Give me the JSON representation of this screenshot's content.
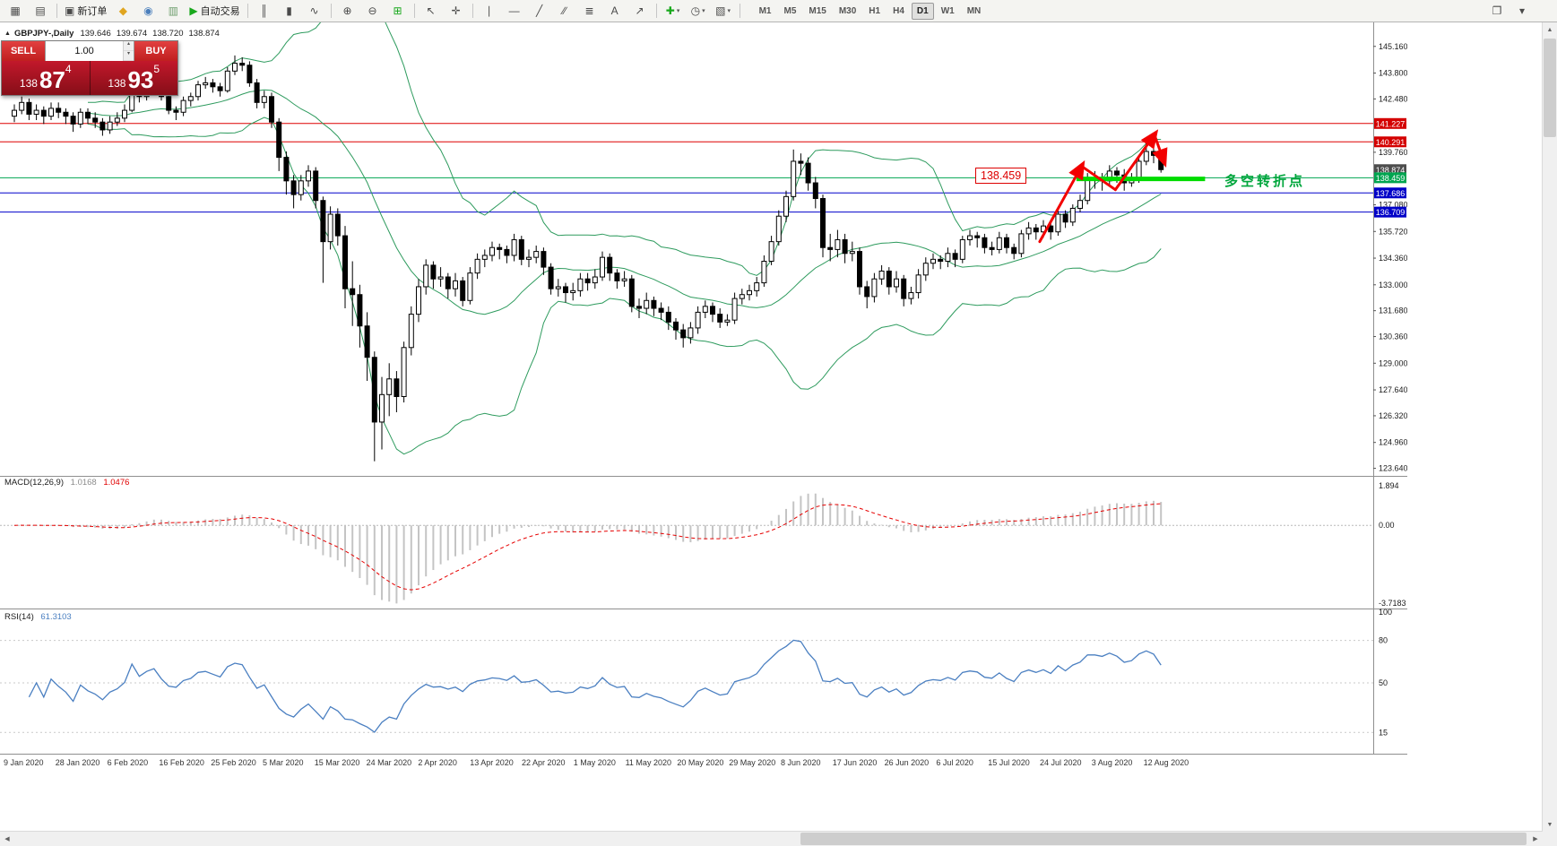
{
  "toolbar": {
    "items": [
      {
        "name": "new-chart-icon",
        "glyph": "▦"
      },
      {
        "name": "profiles-icon",
        "glyph": "▤"
      },
      {
        "name": "sep1",
        "sep": true
      },
      {
        "name": "new-order-button",
        "glyph": "▣",
        "label": "新订单"
      },
      {
        "name": "market-watch-icon",
        "glyph": "◆",
        "color": "#e0a51f"
      },
      {
        "name": "navigator-icon",
        "glyph": "◉",
        "color": "#4a7ebb"
      },
      {
        "name": "terminal-icon",
        "glyph": "▥",
        "color": "#6f9f6f"
      },
      {
        "name": "autotrading-button",
        "glyph": "▶",
        "label": "自动交易",
        "color": "#18a81c"
      },
      {
        "name": "sep2",
        "sep": true
      },
      {
        "name": "bars-chart-icon",
        "glyph": "║"
      },
      {
        "name": "candles-chart-icon",
        "glyph": "▮"
      },
      {
        "name": "line-chart-icon",
        "glyph": "∿"
      },
      {
        "name": "sep3",
        "sep": true
      },
      {
        "name": "zoom-in-icon",
        "glyph": "⊕"
      },
      {
        "name": "zoom-out-icon",
        "glyph": "⊖"
      },
      {
        "name": "tile-windows-icon",
        "glyph": "⊞",
        "color": "#18a81c"
      },
      {
        "name": "sep4",
        "sep": true
      },
      {
        "name": "cursor-icon",
        "glyph": "↖"
      },
      {
        "name": "crosshair-icon",
        "glyph": "✛"
      },
      {
        "name": "sep5",
        "sep": true
      },
      {
        "name": "vertical-line-icon",
        "glyph": "∣"
      },
      {
        "name": "horizontal-line-icon",
        "glyph": "―"
      },
      {
        "name": "trendline-icon",
        "glyph": "╱"
      },
      {
        "name": "channel-icon",
        "glyph": "∕∕"
      },
      {
        "name": "fibonacci-icon",
        "glyph": "≣"
      },
      {
        "name": "text-icon",
        "glyph": "A"
      },
      {
        "name": "arrows-icon",
        "glyph": "↗"
      },
      {
        "name": "sep6",
        "sep": true
      },
      {
        "name": "indicators-icon",
        "glyph": "✚",
        "color": "#18a81c",
        "dropdown": true
      },
      {
        "name": "periods-icon",
        "glyph": "◷",
        "dropdown": true
      },
      {
        "name": "templates-icon",
        "glyph": "▧",
        "dropdown": true
      },
      {
        "name": "sep7",
        "sep": true
      }
    ],
    "timeframes": [
      "M1",
      "M5",
      "M15",
      "M30",
      "H1",
      "H4",
      "D1",
      "W1",
      "MN"
    ],
    "active_timeframe": "D1",
    "right_items": [
      {
        "name": "docking-icon",
        "glyph": "❐"
      },
      {
        "name": "toolbar-more-icon",
        "glyph": "▾"
      }
    ]
  },
  "chart_header": {
    "symbol": "GBPJPY-,Daily",
    "open": "139.646",
    "high": "139.674",
    "low": "138.720",
    "close": "138.874"
  },
  "trade_panel": {
    "sell_label": "SELL",
    "buy_label": "BUY",
    "lot_value": "1.00",
    "sell_small": "138",
    "sell_big": "87",
    "sell_sup": "4",
    "buy_small": "138",
    "buy_big": "93",
    "buy_sup": "5"
  },
  "annotations": {
    "price_box": "138.459",
    "turning_point_text": "多空转折点"
  },
  "axis": {
    "price_labels": [
      "145.160",
      "143.800",
      "142.480",
      "139.760",
      "137.080",
      "135.720",
      "134.360",
      "133.000",
      "131.680",
      "130.360",
      "129.000",
      "127.640",
      "126.320",
      "124.960",
      "123.640"
    ],
    "date_labels": [
      "9 Jan 2020",
      "28 Jan 2020",
      "6 Feb 2020",
      "16 Feb 2020",
      "25 Feb 2020",
      "5 Mar 2020",
      "15 Mar 2020",
      "24 Mar 2020",
      "2 Apr 2020",
      "13 Apr 2020",
      "22 Apr 2020",
      "1 May 2020",
      "11 May 2020",
      "20 May 2020",
      "29 May 2020",
      "8 Jun 2020",
      "17 Jun 2020",
      "26 Jun 2020",
      "6 Jul 2020",
      "15 Jul 2020",
      "24 Jul 2020",
      "3 Aug 2020",
      "12 Aug 2020"
    ]
  },
  "price_tags": [
    {
      "text": "141.227",
      "value": 141.227,
      "color": "#d40000"
    },
    {
      "text": "140.291",
      "value": 140.291,
      "color": "#d40000"
    },
    {
      "text": "138.874",
      "value": 138.874,
      "color": "#4d4d4d"
    },
    {
      "text": "138.459",
      "value": 138.459,
      "color": "#00a550"
    },
    {
      "text": "137.686",
      "value": 137.686,
      "color": "#0000c8"
    },
    {
      "text": "136.709",
      "value": 136.709,
      "color": "#0000c8"
    }
  ],
  "macd_panel": {
    "name": "MACD(12,26,9)",
    "main_value": "1.0168",
    "signal_value": "1.0476",
    "axis_labels": [
      {
        "text": "1.894",
        "value": 1.894
      },
      {
        "text": "0.00",
        "value": 0
      },
      {
        "text": "-3.7183",
        "value": -3.7183
      }
    ]
  },
  "rsi_panel": {
    "name": "RSI(14)",
    "value": "61.3103",
    "axis_labels": [
      {
        "text": "100",
        "value": 100
      },
      {
        "text": "80",
        "value": 80
      },
      {
        "text": "50",
        "value": 50
      },
      {
        "text": "15",
        "value": 15
      }
    ]
  },
  "chart_data": {
    "type": "candlestick",
    "symbol": "GBPJPY-",
    "timeframe": "Daily",
    "y_range": [
      123.3,
      146.2
    ],
    "horizontal_lines": [
      {
        "value": 141.227,
        "color": "#dd0000"
      },
      {
        "value": 140.291,
        "color": "#dd0000"
      },
      {
        "value": 138.459,
        "color": "#00a550"
      },
      {
        "value": 137.686,
        "color": "#0000cc"
      },
      {
        "value": 136.709,
        "color": "#0000cc"
      }
    ],
    "turning_line": {
      "price": 138.4,
      "from_index": 144.5,
      "to_index": 162,
      "color": "#00dc00",
      "width": 5
    },
    "trend_arrows": {
      "color": "#f20000",
      "points": [
        [
          139.5,
          135.2
        ],
        [
          145.2,
          139.05
        ],
        [
          149.8,
          137.85
        ],
        [
          155.1,
          140.65
        ],
        [
          156.4,
          139.3
        ]
      ],
      "arrow_segments": [
        0,
        2,
        3
      ]
    },
    "indicators": {
      "bollinger": {
        "period": 20,
        "deviation": 2,
        "color": "#2e9b5e"
      },
      "macd": {
        "fast": 12,
        "slow": 26,
        "signal": 9,
        "histogram_color": "#c4c4c4",
        "signal_color": "#e60000",
        "range": [
          -3.9,
          2.2
        ]
      },
      "rsi": {
        "period": 14,
        "color": "#4a7fc1",
        "levels": [
          80,
          50,
          15
        ]
      }
    },
    "candles": [
      [
        141.6,
        142.2,
        141.3,
        141.9
      ],
      [
        141.9,
        142.6,
        141.7,
        142.3
      ],
      [
        142.3,
        142.5,
        141.4,
        141.7
      ],
      [
        141.7,
        142.2,
        141.4,
        141.9
      ],
      [
        141.9,
        142.1,
        141.2,
        141.6
      ],
      [
        141.6,
        142.3,
        141.4,
        142.0
      ],
      [
        142.0,
        142.3,
        141.5,
        141.8
      ],
      [
        141.8,
        142.0,
        141.2,
        141.6
      ],
      [
        141.6,
        141.8,
        140.8,
        141.2
      ],
      [
        141.2,
        142.0,
        141.0,
        141.8
      ],
      [
        141.8,
        142.0,
        141.2,
        141.5
      ],
      [
        141.5,
        141.8,
        141.0,
        141.3
      ],
      [
        141.3,
        141.5,
        140.6,
        140.9
      ],
      [
        140.9,
        141.6,
        140.7,
        141.3
      ],
      [
        141.3,
        141.8,
        141.1,
        141.5
      ],
      [
        141.5,
        142.2,
        141.3,
        141.9
      ],
      [
        141.9,
        143.7,
        141.8,
        143.5
      ],
      [
        143.5,
        143.8,
        142.3,
        142.6
      ],
      [
        142.6,
        143.3,
        142.4,
        143.1
      ],
      [
        143.1,
        143.6,
        142.9,
        143.4
      ],
      [
        143.4,
        143.6,
        142.4,
        142.6
      ],
      [
        142.6,
        142.8,
        141.7,
        141.9
      ],
      [
        141.9,
        142.1,
        141.4,
        141.8
      ],
      [
        141.8,
        142.6,
        141.6,
        142.4
      ],
      [
        142.4,
        142.8,
        142.1,
        142.6
      ],
      [
        142.6,
        143.4,
        142.4,
        143.2
      ],
      [
        143.2,
        143.6,
        143.0,
        143.3
      ],
      [
        143.3,
        143.5,
        142.8,
        143.1
      ],
      [
        143.1,
        143.3,
        142.6,
        142.9
      ],
      [
        142.9,
        144.1,
        142.8,
        143.9
      ],
      [
        143.9,
        144.7,
        143.7,
        144.3
      ],
      [
        144.3,
        144.6,
        143.9,
        144.2
      ],
      [
        144.2,
        144.4,
        143.1,
        143.3
      ],
      [
        143.3,
        143.5,
        142.0,
        142.3
      ],
      [
        142.3,
        142.9,
        142.0,
        142.6
      ],
      [
        142.6,
        142.8,
        141.0,
        141.3
      ],
      [
        141.3,
        141.5,
        138.8,
        139.5
      ],
      [
        139.5,
        139.8,
        137.6,
        138.3
      ],
      [
        138.3,
        138.6,
        136.9,
        137.6
      ],
      [
        137.6,
        138.6,
        137.3,
        138.3
      ],
      [
        138.3,
        139.1,
        138.0,
        138.8
      ],
      [
        138.8,
        139.0,
        136.9,
        137.3
      ],
      [
        137.3,
        137.5,
        133.1,
        135.2
      ],
      [
        135.2,
        137.0,
        134.8,
        136.6
      ],
      [
        136.6,
        136.9,
        135.0,
        135.5
      ],
      [
        135.5,
        136.0,
        131.8,
        132.8
      ],
      [
        132.8,
        134.2,
        130.9,
        132.5
      ],
      [
        132.5,
        133.0,
        129.8,
        130.9
      ],
      [
        130.9,
        131.6,
        128.1,
        129.3
      ],
      [
        129.3,
        129.6,
        124.0,
        126.0
      ],
      [
        126.0,
        128.3,
        124.6,
        127.4
      ],
      [
        127.4,
        129.0,
        126.3,
        128.2
      ],
      [
        128.2,
        128.6,
        126.5,
        127.3
      ],
      [
        127.3,
        130.1,
        127.0,
        129.8
      ],
      [
        129.8,
        131.9,
        129.4,
        131.5
      ],
      [
        131.5,
        133.3,
        131.1,
        132.9
      ],
      [
        132.9,
        134.3,
        132.5,
        134.0
      ],
      [
        134.0,
        134.2,
        132.8,
        133.3
      ],
      [
        133.3,
        133.9,
        132.9,
        133.4
      ],
      [
        133.4,
        133.6,
        132.3,
        132.8
      ],
      [
        132.8,
        133.6,
        132.4,
        133.2
      ],
      [
        133.2,
        133.4,
        131.9,
        132.2
      ],
      [
        132.2,
        133.9,
        132.0,
        133.6
      ],
      [
        133.6,
        134.6,
        133.3,
        134.3
      ],
      [
        134.3,
        134.8,
        133.9,
        134.5
      ],
      [
        134.5,
        135.2,
        134.2,
        134.9
      ],
      [
        134.9,
        135.1,
        134.3,
        134.8
      ],
      [
        134.8,
        135.0,
        134.1,
        134.5
      ],
      [
        134.5,
        135.6,
        134.2,
        135.3
      ],
      [
        135.3,
        135.5,
        134.0,
        134.3
      ],
      [
        134.3,
        134.8,
        133.9,
        134.4
      ],
      [
        134.4,
        135.0,
        134.1,
        134.7
      ],
      [
        134.7,
        134.9,
        133.5,
        133.9
      ],
      [
        133.9,
        134.1,
        132.5,
        132.8
      ],
      [
        132.8,
        133.3,
        132.4,
        132.9
      ],
      [
        132.9,
        133.1,
        132.1,
        132.6
      ],
      [
        132.6,
        133.1,
        132.2,
        132.7
      ],
      [
        132.7,
        133.6,
        132.4,
        133.3
      ],
      [
        133.3,
        133.6,
        132.7,
        133.1
      ],
      [
        133.1,
        133.8,
        132.8,
        133.4
      ],
      [
        133.4,
        134.7,
        133.2,
        134.4
      ],
      [
        134.4,
        134.6,
        133.2,
        133.6
      ],
      [
        133.6,
        133.8,
        132.8,
        133.2
      ],
      [
        133.2,
        133.7,
        132.9,
        133.3
      ],
      [
        133.3,
        133.5,
        131.6,
        131.9
      ],
      [
        131.9,
        132.3,
        131.3,
        131.8
      ],
      [
        131.8,
        132.6,
        131.5,
        132.2
      ],
      [
        132.2,
        132.4,
        131.4,
        131.8
      ],
      [
        131.8,
        132.1,
        131.2,
        131.6
      ],
      [
        131.6,
        131.9,
        130.7,
        131.1
      ],
      [
        131.1,
        131.3,
        130.2,
        130.7
      ],
      [
        130.7,
        131.0,
        129.8,
        130.3
      ],
      [
        130.3,
        131.1,
        130.0,
        130.8
      ],
      [
        130.8,
        131.9,
        130.5,
        131.6
      ],
      [
        131.6,
        132.2,
        131.3,
        131.9
      ],
      [
        131.9,
        132.1,
        131.1,
        131.5
      ],
      [
        131.5,
        131.8,
        130.8,
        131.1
      ],
      [
        131.1,
        131.5,
        130.9,
        131.2
      ],
      [
        131.2,
        132.6,
        131.0,
        132.3
      ],
      [
        132.3,
        132.8,
        132.0,
        132.5
      ],
      [
        132.5,
        133.0,
        132.2,
        132.7
      ],
      [
        132.7,
        133.4,
        132.4,
        133.1
      ],
      [
        133.1,
        134.5,
        132.9,
        134.2
      ],
      [
        134.2,
        135.5,
        134.0,
        135.2
      ],
      [
        135.2,
        136.8,
        135.0,
        136.5
      ],
      [
        136.5,
        137.8,
        136.2,
        137.5
      ],
      [
        137.5,
        139.9,
        137.3,
        139.3
      ],
      [
        139.3,
        139.7,
        138.6,
        139.2
      ],
      [
        139.2,
        139.5,
        137.8,
        138.2
      ],
      [
        138.2,
        138.5,
        136.9,
        137.4
      ],
      [
        137.4,
        137.6,
        134.4,
        134.9
      ],
      [
        134.9,
        135.6,
        134.2,
        134.8
      ],
      [
        134.8,
        135.8,
        134.4,
        135.3
      ],
      [
        135.3,
        135.6,
        134.1,
        134.6
      ],
      [
        134.6,
        135.2,
        134.2,
        134.7
      ],
      [
        134.7,
        134.9,
        132.5,
        132.9
      ],
      [
        132.9,
        133.2,
        131.8,
        132.4
      ],
      [
        132.4,
        133.6,
        132.1,
        133.3
      ],
      [
        133.3,
        134.0,
        133.0,
        133.7
      ],
      [
        133.7,
        133.9,
        132.5,
        132.9
      ],
      [
        132.9,
        133.7,
        132.6,
        133.3
      ],
      [
        133.3,
        133.5,
        131.9,
        132.3
      ],
      [
        132.3,
        132.9,
        132.0,
        132.6
      ],
      [
        132.6,
        133.8,
        132.3,
        133.5
      ],
      [
        133.5,
        134.4,
        133.2,
        134.1
      ],
      [
        134.1,
        134.6,
        133.8,
        134.3
      ],
      [
        134.3,
        134.5,
        133.8,
        134.2
      ],
      [
        134.2,
        134.9,
        133.9,
        134.6
      ],
      [
        134.6,
        134.8,
        133.9,
        134.3
      ],
      [
        134.3,
        135.5,
        134.1,
        135.3
      ],
      [
        135.3,
        135.8,
        135.0,
        135.5
      ],
      [
        135.5,
        135.7,
        134.9,
        135.4
      ],
      [
        135.4,
        135.6,
        134.6,
        134.9
      ],
      [
        134.9,
        135.2,
        134.5,
        134.8
      ],
      [
        134.8,
        135.7,
        134.6,
        135.4
      ],
      [
        135.4,
        135.6,
        134.6,
        134.9
      ],
      [
        134.9,
        135.1,
        134.3,
        134.6
      ],
      [
        134.6,
        135.8,
        134.4,
        135.6
      ],
      [
        135.6,
        136.2,
        135.3,
        135.9
      ],
      [
        135.9,
        136.1,
        135.3,
        135.7
      ],
      [
        135.7,
        136.3,
        135.4,
        136.0
      ],
      [
        136.0,
        136.2,
        135.3,
        135.7
      ],
      [
        135.7,
        136.9,
        135.5,
        136.6
      ],
      [
        136.6,
        136.8,
        135.9,
        136.2
      ],
      [
        136.2,
        137.1,
        136.0,
        136.9
      ],
      [
        136.9,
        137.6,
        136.7,
        137.3
      ],
      [
        137.3,
        138.7,
        137.1,
        138.4
      ],
      [
        138.4,
        138.8,
        137.9,
        138.4
      ],
      [
        138.4,
        138.7,
        137.8,
        138.3
      ],
      [
        138.3,
        139.1,
        138.1,
        138.8
      ],
      [
        138.8,
        139.0,
        138.2,
        138.6
      ],
      [
        138.6,
        138.9,
        137.8,
        138.2
      ],
      [
        138.2,
        138.7,
        138.0,
        138.4
      ],
      [
        138.4,
        139.5,
        138.2,
        139.3
      ],
      [
        139.3,
        140.3,
        139.1,
        139.8
      ],
      [
        139.8,
        140.1,
        139.2,
        139.6
      ],
      [
        139.646,
        139.674,
        138.72,
        138.874
      ]
    ]
  }
}
